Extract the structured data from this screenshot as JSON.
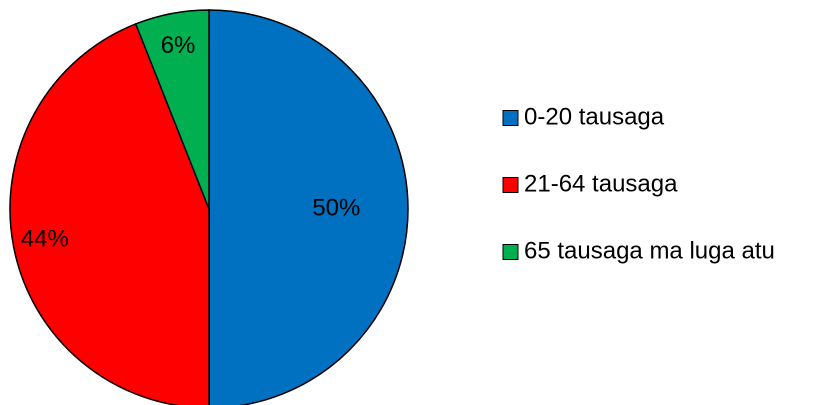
{
  "chart_data": {
    "type": "pie",
    "title": "",
    "categories": [
      "0-20 tausaga",
      "21-64 tausaga",
      "65 tausaga ma luga atu"
    ],
    "values": [
      50,
      44,
      6
    ],
    "labels": [
      "50%",
      "44%",
      "6%"
    ],
    "colors": [
      "#0070C0",
      "#FF0000",
      "#00B050"
    ],
    "legend_position": "right",
    "start_angle_deg": 0,
    "direction": "clockwise"
  }
}
